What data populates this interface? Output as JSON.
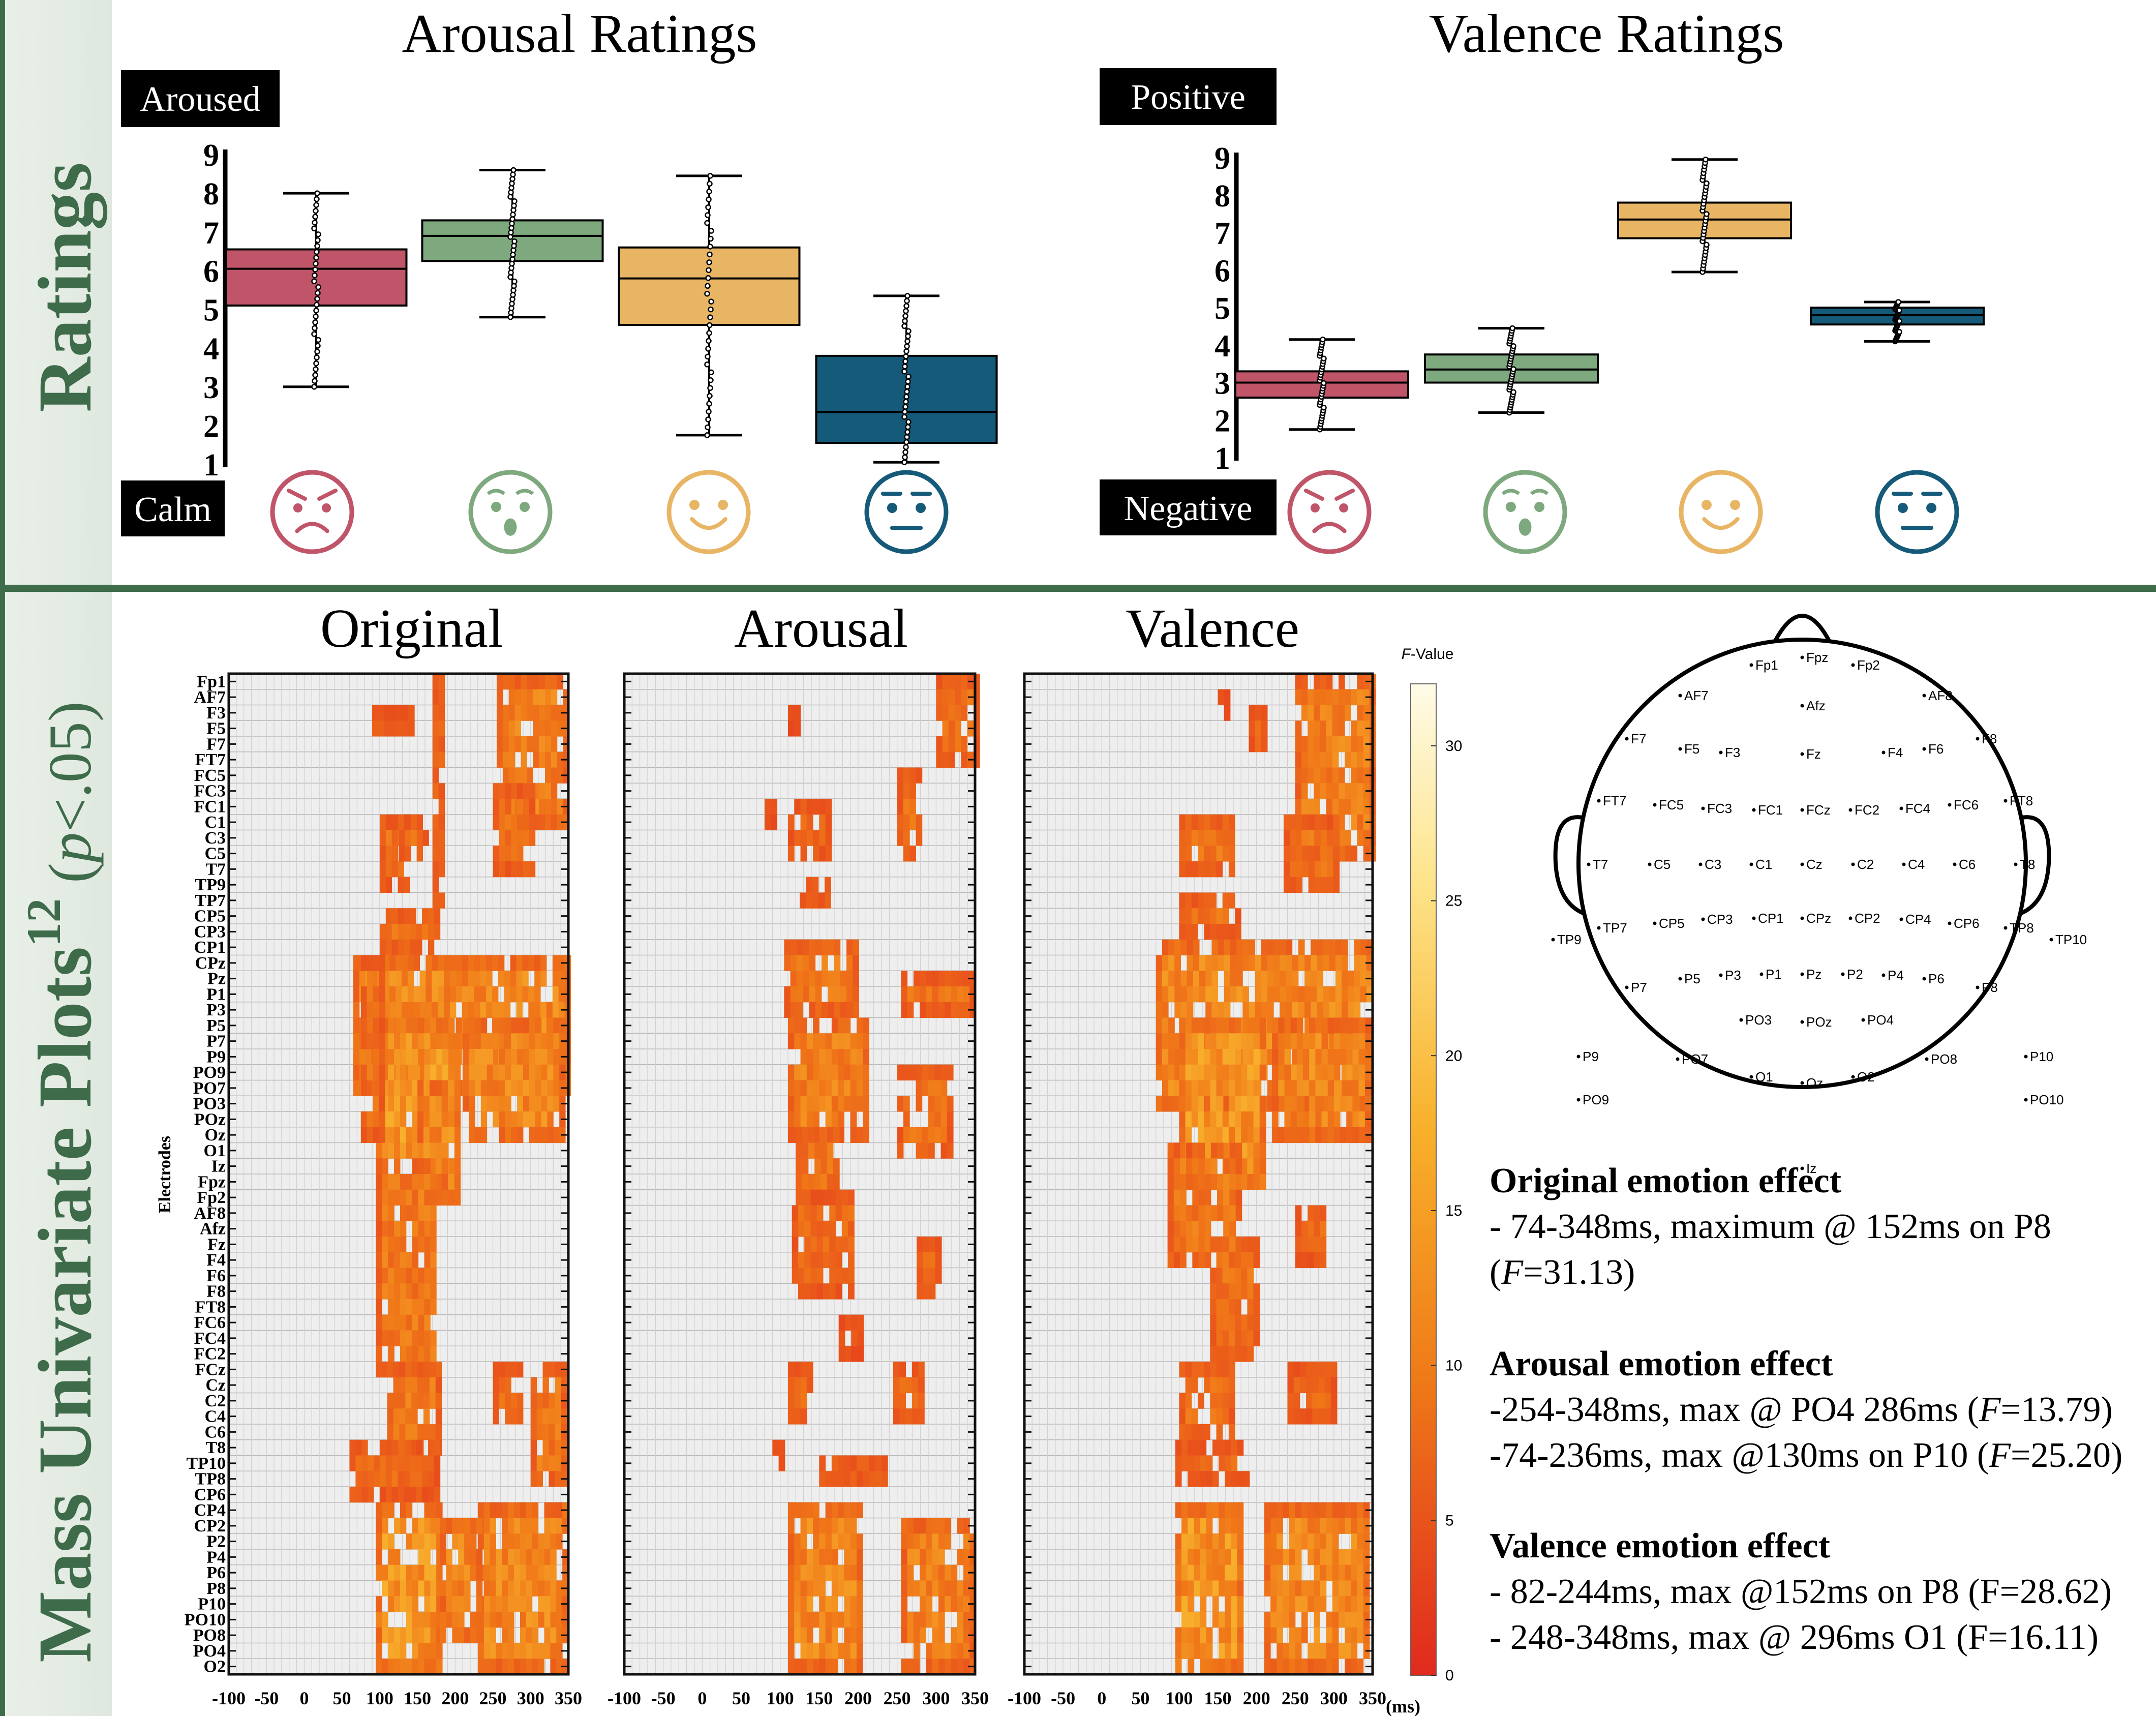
{
  "sidebar": {
    "top_label": "Ratings",
    "bottom_label_main": "Mass Univariate Plots",
    "bottom_label_sup": "12",
    "bottom_label_sub_p": "p",
    "bottom_label_sub_rest": "<.05"
  },
  "chart_data": [
    {
      "type": "box",
      "title": "Arousal Ratings",
      "label_high": "Aroused",
      "label_low": "Calm",
      "ylim": [
        1,
        9
      ],
      "yticks": [
        "1",
        "2",
        "3",
        "4",
        "5",
        "6",
        "7",
        "8",
        "9"
      ],
      "categories": [
        "angry-face",
        "surprised-face",
        "happy-face",
        "neutral-face"
      ],
      "boxes": [
        {
          "color": "#c05468",
          "min": 3.0,
          "q1": 5.1,
          "median": 6.05,
          "q3": 6.55,
          "max": 8.0
        },
        {
          "color": "#7ea87e",
          "min": 4.8,
          "q1": 6.25,
          "median": 6.9,
          "q3": 7.3,
          "max": 8.6
        },
        {
          "color": "#e8b565",
          "min": 1.75,
          "q1": 4.6,
          "median": 5.8,
          "q3": 6.6,
          "max": 8.45
        },
        {
          "color": "#155a78",
          "min": 1.05,
          "q1": 1.55,
          "median": 2.35,
          "q3": 3.8,
          "max": 5.35
        }
      ]
    },
    {
      "type": "box",
      "title": "Valence Ratings",
      "label_high": "Positive",
      "label_low": "Negative",
      "ylim": [
        1,
        9
      ],
      "yticks": [
        "1",
        "2",
        "3",
        "4",
        "5",
        "6",
        "7",
        "8",
        "9"
      ],
      "categories": [
        "angry-face",
        "surprised-face",
        "happy-face",
        "neutral-face"
      ],
      "boxes": [
        {
          "color": "#c05468",
          "min": 1.75,
          "q1": 2.6,
          "median": 3.0,
          "q3": 3.3,
          "max": 4.15
        },
        {
          "color": "#7ea87e",
          "min": 2.2,
          "q1": 3.0,
          "median": 3.35,
          "q3": 3.75,
          "max": 4.45
        },
        {
          "color": "#e8b565",
          "min": 5.95,
          "q1": 6.85,
          "median": 7.35,
          "q3": 7.8,
          "max": 8.95
        },
        {
          "color": "#155a78",
          "min": 4.1,
          "q1": 4.55,
          "median": 4.8,
          "q3": 5.0,
          "max": 5.15
        }
      ]
    },
    {
      "type": "heatmap",
      "panels": [
        "Original",
        "Arousal",
        "Valence"
      ],
      "ylabel": "Electrodes",
      "xlabel_unit": "(ms)",
      "xticks": [
        "-100",
        "-50",
        "0",
        "50",
        "100",
        "150",
        "200",
        "250",
        "300",
        "350"
      ],
      "xlim": [
        -100,
        350
      ],
      "electrodes": [
        "Fp1",
        "AF7",
        "F3",
        "F5",
        "F7",
        "FT7",
        "FC5",
        "FC3",
        "FC1",
        "C1",
        "C3",
        "C5",
        "T7",
        "TP9",
        "TP7",
        "CP5",
        "CP3",
        "CP1",
        "CPz",
        "Pz",
        "P1",
        "P3",
        "P5",
        "P7",
        "P9",
        "PO9",
        "PO7",
        "PO3",
        "POz",
        "Oz",
        "O1",
        "Iz",
        "Fpz",
        "Fp2",
        "AF8",
        "Afz",
        "Fz",
        "F4",
        "F6",
        "F8",
        "FT8",
        "FC6",
        "FC4",
        "FC2",
        "FCz",
        "Cz",
        "C2",
        "C4",
        "C6",
        "T8",
        "TP10",
        "TP8",
        "CP6",
        "CP4",
        "CP2",
        "P2",
        "P4",
        "P6",
        "P8",
        "P10",
        "PO10",
        "PO8",
        "PO4",
        "O2"
      ],
      "colorbar": {
        "label_italic": "F",
        "label_rest": "-Value",
        "ticks": [
          "0",
          "5",
          "10",
          "15",
          "20",
          "25",
          "30"
        ],
        "range": [
          0,
          32
        ]
      }
    }
  ],
  "topomap": {
    "labels": [
      "Fp1",
      "Fpz",
      "Fp2",
      "AF7",
      "Afz",
      "AF8",
      "F7",
      "F5",
      "F3",
      "Fz",
      "F4",
      "F6",
      "F8",
      "FT7",
      "FC5",
      "FC3",
      "FC1",
      "FCz",
      "FC2",
      "FC4",
      "FC6",
      "FT8",
      "T7",
      "C5",
      "C3",
      "C1",
      "Cz",
      "C2",
      "C4",
      "C6",
      "T8",
      "TP7",
      "CP5",
      "CP3",
      "CP1",
      "CPz",
      "CP2",
      "CP4",
      "CP6",
      "TP8",
      "TP9",
      "TP10",
      "P7",
      "P5",
      "P3",
      "P1",
      "Pz",
      "P2",
      "P4",
      "P6",
      "P8",
      "PO3",
      "POz",
      "PO4",
      "P9",
      "PO7",
      "PO8",
      "P10",
      "PO9",
      "O1",
      "Oz",
      "O2",
      "PO10",
      "Iz"
    ]
  },
  "effects": [
    {
      "heading": "Original emotion effect",
      "lines": [
        {
          "pre": "- 74-348ms, maximum @ 152ms on P8",
          "italic": "",
          "post": ""
        },
        {
          "pre": "(",
          "italic": "F",
          "post": "=31.13)"
        }
      ]
    },
    {
      "heading": "Arousal emotion effect",
      "lines": [
        {
          "pre": "-254-348ms, max @ PO4 286ms (",
          "italic": "F",
          "post": "=13.79)"
        },
        {
          "pre": "-74-236ms, max @130ms on P10 (",
          "italic": "F",
          "post": "=25.20)"
        }
      ]
    },
    {
      "heading": "Valence emotion effect",
      "lines": [
        {
          "pre": "- 82-244ms, max @152ms on P8 (F=28.62)",
          "italic": "",
          "post": ""
        },
        {
          "pre": "- 248-348ms, max @ 296ms O1 (F=16.11)",
          "italic": "",
          "post": ""
        }
      ]
    }
  ]
}
